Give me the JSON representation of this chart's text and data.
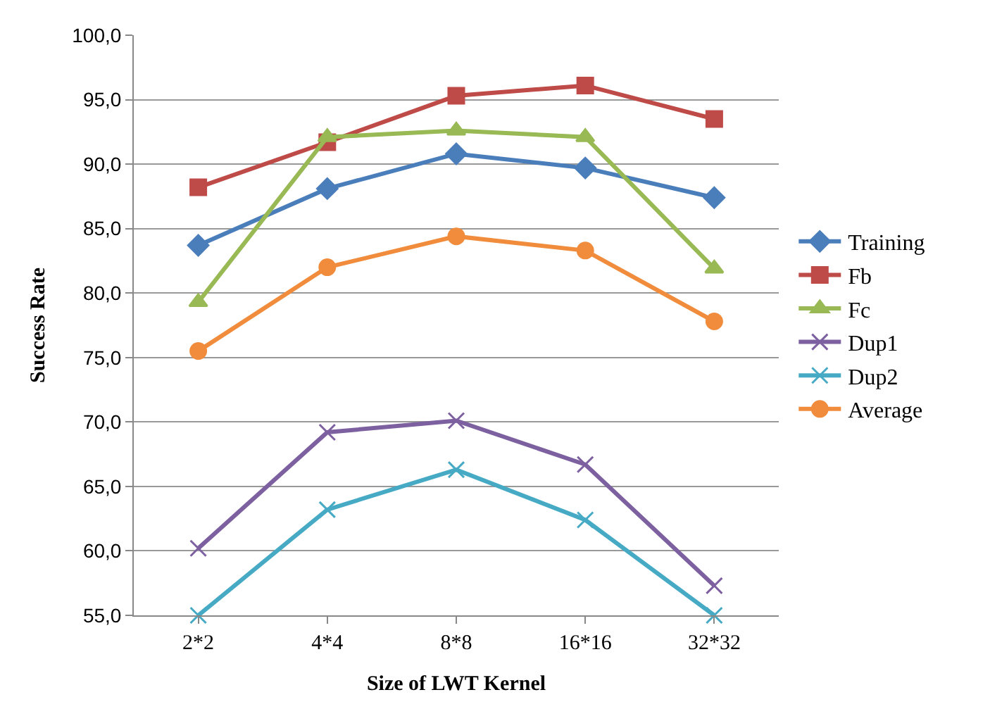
{
  "chart_data": {
    "type": "line",
    "xlabel": "Size of LWT Kernel",
    "ylabel": "Success Rate",
    "categories": [
      "2*2",
      "4*4",
      "8*8",
      "16*16",
      "32*32"
    ],
    "series": [
      {
        "name": "Training",
        "color": "#4a7ebb",
        "marker": "diamond",
        "values": [
          83.7,
          88.1,
          90.8,
          89.7,
          87.4
        ]
      },
      {
        "name": "Fb",
        "color": "#be4b48",
        "marker": "square",
        "values": [
          88.2,
          91.7,
          95.3,
          96.1,
          93.5
        ]
      },
      {
        "name": "Fc",
        "color": "#98b954",
        "marker": "triangle",
        "values": [
          79.3,
          92.1,
          92.6,
          92.1,
          81.9
        ]
      },
      {
        "name": "Dup1",
        "color": "#7d60a0",
        "marker": "cross",
        "values": [
          60.2,
          69.2,
          70.1,
          66.7,
          57.3
        ]
      },
      {
        "name": "Dup2",
        "color": "#46aac5",
        "marker": "cross",
        "values": [
          55.0,
          63.2,
          66.3,
          62.4,
          55.0
        ]
      },
      {
        "name": "Average",
        "color": "#f08c3c",
        "marker": "circle",
        "values": [
          75.5,
          82.0,
          84.4,
          83.3,
          77.8
        ]
      }
    ],
    "ylim": [
      55,
      100
    ],
    "yticks": [
      {
        "value": 55,
        "label": "55,0"
      },
      {
        "value": 60,
        "label": "60,0"
      },
      {
        "value": 65,
        "label": "65,0"
      },
      {
        "value": 70,
        "label": "70,0"
      },
      {
        "value": 75,
        "label": "75,0"
      },
      {
        "value": 80,
        "label": "80,0"
      },
      {
        "value": 85,
        "label": "85,0"
      },
      {
        "value": 90,
        "label": "90,0"
      },
      {
        "value": 95,
        "label": "95,0"
      },
      {
        "value": 100,
        "label": "100,0"
      }
    ],
    "grid": "y",
    "legend": "right",
    "line_style": "solid"
  }
}
